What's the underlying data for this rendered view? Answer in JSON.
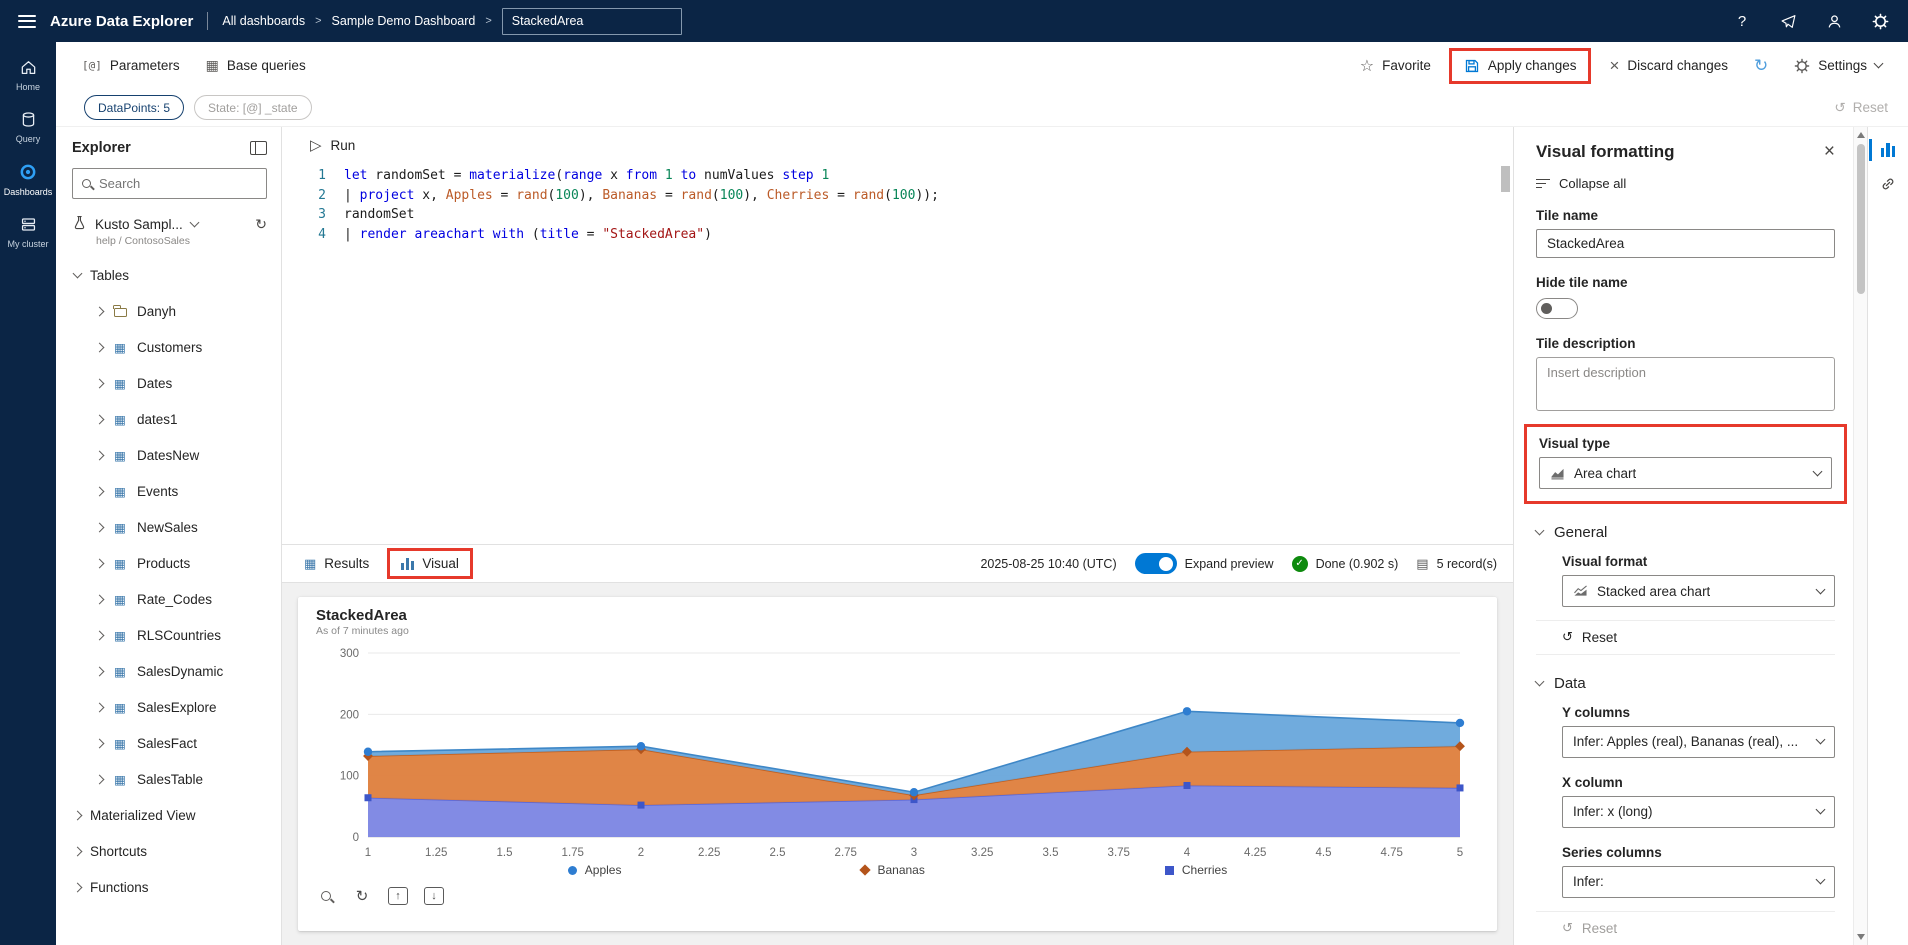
{
  "topbar": {
    "app_title": "Azure Data Explorer",
    "breadcrumb": [
      "All dashboards",
      "Sample Demo Dashboard"
    ],
    "title_input": "StackedArea"
  },
  "toolbar": {
    "parameters": "Parameters",
    "base_queries": "Base queries",
    "favorite": "Favorite",
    "apply_changes": "Apply changes",
    "discard_changes": "Discard changes",
    "settings": "Settings"
  },
  "chips": {
    "datapoints": "DataPoints: 5",
    "state": "State: [@] _state",
    "reset": "Reset"
  },
  "left_rail": {
    "items": [
      {
        "label": "Home",
        "icon": "home",
        "active": false
      },
      {
        "label": "Query",
        "icon": "query",
        "active": false
      },
      {
        "label": "Dashboards",
        "icon": "dashboards",
        "active": true
      },
      {
        "label": "My cluster",
        "icon": "cluster",
        "active": false
      }
    ]
  },
  "explorer": {
    "title": "Explorer",
    "search_placeholder": "Search",
    "database": {
      "name": "Kusto Sampl...",
      "path": "help / ContosoSales"
    },
    "tables": {
      "label": "Tables",
      "items": [
        {
          "label": "Danyh",
          "icon": "folder"
        },
        {
          "label": "Customers",
          "icon": "table"
        },
        {
          "label": "Dates",
          "icon": "table"
        },
        {
          "label": "dates1",
          "icon": "table"
        },
        {
          "label": "DatesNew",
          "icon": "table"
        },
        {
          "label": "Events",
          "icon": "table"
        },
        {
          "label": "NewSales",
          "icon": "table"
        },
        {
          "label": "Products",
          "icon": "table"
        },
        {
          "label": "Rate_Codes",
          "icon": "table"
        },
        {
          "label": "RLSCountries",
          "icon": "table"
        },
        {
          "label": "SalesDynamic",
          "icon": "table"
        },
        {
          "label": "SalesExplore",
          "icon": "table"
        },
        {
          "label": "SalesFact",
          "icon": "table"
        },
        {
          "label": "SalesTable",
          "icon": "table"
        }
      ]
    },
    "other_sections": [
      "Materialized View",
      "Shortcuts",
      "Functions"
    ]
  },
  "editor": {
    "run_label": "Run",
    "lines": [
      [
        {
          "t": "let",
          "c": "kw"
        },
        {
          "t": " randomSet = ",
          "c": "pl"
        },
        {
          "t": "materialize",
          "c": "kw"
        },
        {
          "t": "(",
          "c": "pl"
        },
        {
          "t": "range",
          "c": "kw"
        },
        {
          "t": " x ",
          "c": "pl"
        },
        {
          "t": "from",
          "c": "kw"
        },
        {
          "t": " ",
          "c": "pl"
        },
        {
          "t": "1",
          "c": "num"
        },
        {
          "t": " ",
          "c": "pl"
        },
        {
          "t": "to",
          "c": "kw"
        },
        {
          "t": " numValues ",
          "c": "pl"
        },
        {
          "t": "step",
          "c": "kw"
        },
        {
          "t": " ",
          "c": "pl"
        },
        {
          "t": "1",
          "c": "num"
        }
      ],
      [
        {
          "t": "| ",
          "c": "pl"
        },
        {
          "t": "project",
          "c": "kw"
        },
        {
          "t": " x, ",
          "c": "pl"
        },
        {
          "t": "Apples",
          "c": "col"
        },
        {
          "t": " = ",
          "c": "pl"
        },
        {
          "t": "rand",
          "c": "col"
        },
        {
          "t": "(",
          "c": "pl"
        },
        {
          "t": "100",
          "c": "num"
        },
        {
          "t": "), ",
          "c": "pl"
        },
        {
          "t": "Bananas",
          "c": "col"
        },
        {
          "t": " = ",
          "c": "pl"
        },
        {
          "t": "rand",
          "c": "col"
        },
        {
          "t": "(",
          "c": "pl"
        },
        {
          "t": "100",
          "c": "num"
        },
        {
          "t": "), ",
          "c": "pl"
        },
        {
          "t": "Cherries",
          "c": "col"
        },
        {
          "t": " = ",
          "c": "pl"
        },
        {
          "t": "rand",
          "c": "col"
        },
        {
          "t": "(",
          "c": "pl"
        },
        {
          "t": "100",
          "c": "num"
        },
        {
          "t": "));",
          "c": "pl"
        }
      ],
      [
        {
          "t": "randomSet",
          "c": "pl"
        }
      ],
      [
        {
          "t": "| ",
          "c": "pl"
        },
        {
          "t": "render",
          "c": "kw"
        },
        {
          "t": " areachart ",
          "c": "kw"
        },
        {
          "t": "with",
          "c": "kw"
        },
        {
          "t": " (",
          "c": "pl"
        },
        {
          "t": "title",
          "c": "kw"
        },
        {
          "t": " = ",
          "c": "pl"
        },
        {
          "t": "\"StackedArea\"",
          "c": "str"
        },
        {
          "t": ")",
          "c": "pl"
        }
      ]
    ]
  },
  "results_bar": {
    "results_tab": "Results",
    "visual_tab": "Visual",
    "timestamp": "2025-08-25 10:40 (UTC)",
    "expand_preview": "Expand preview",
    "status": "Done (0.902 s)",
    "records": "5 record(s)"
  },
  "preview": {
    "title": "StackedArea",
    "as_of": "As of 7 minutes ago"
  },
  "chart_data": {
    "type": "area",
    "stacked": true,
    "title": "StackedArea",
    "x": [
      1,
      2,
      3,
      4,
      5
    ],
    "x_ticks": [
      1,
      1.25,
      1.5,
      1.75,
      2,
      2.25,
      2.5,
      2.75,
      3,
      3.25,
      3.5,
      3.75,
      4,
      4.25,
      4.5,
      4.75,
      5
    ],
    "ylim": [
      0,
      300
    ],
    "y_ticks": [
      0,
      100,
      200,
      300
    ],
    "grid": true,
    "legend_position": "bottom",
    "series": [
      {
        "name": "Cherries",
        "values": [
          64,
          52,
          61,
          84,
          80
        ],
        "fill": "#7b85e3",
        "edge": "#5a67d8",
        "marker": "square",
        "marker_color": "#3d56c9"
      },
      {
        "name": "Bananas",
        "values": [
          68,
          91,
          7,
          55,
          68
        ],
        "fill": "#de7e3c",
        "edge": "#c05f1f",
        "marker": "diamond",
        "marker_color": "#b4541b"
      },
      {
        "name": "Apples",
        "values": [
          7,
          5,
          5,
          66,
          38
        ],
        "fill": "#68a7db",
        "edge": "#3e87c7",
        "marker": "circle",
        "marker_color": "#2e7dd1"
      }
    ],
    "legend": [
      {
        "name": "Apples",
        "shape": "circle",
        "color": "#2e7dd1"
      },
      {
        "name": "Bananas",
        "shape": "diamond",
        "color": "#b4541b"
      },
      {
        "name": "Cherries",
        "shape": "square",
        "color": "#3d56c9"
      }
    ]
  },
  "visual_formatting": {
    "title": "Visual formatting",
    "collapse_all": "Collapse all",
    "tile_name_label": "Tile name",
    "tile_name_value": "StackedArea",
    "hide_tile_name_label": "Hide tile name",
    "tile_description_label": "Tile description",
    "tile_description_placeholder": "Insert description",
    "visual_type_label": "Visual type",
    "visual_type_value": "Area chart",
    "general_label": "General",
    "visual_format_label": "Visual format",
    "visual_format_value": "Stacked area chart",
    "reset_label": "Reset",
    "data_label": "Data",
    "y_columns_label": "Y columns",
    "y_columns_value": "Infer: Apples (real), Bananas (real), ...",
    "x_column_label": "X column",
    "x_column_value": "Infer: x (long)",
    "series_columns_label": "Series columns",
    "series_columns_value": "Infer:"
  },
  "colors": {
    "accent": "#0078d4",
    "topbar_bg": "#0b2545",
    "annotation_red": "#e6392b",
    "done_green": "#0e8a0e"
  },
  "icons": {
    "breadcrumb_sep": ">",
    "help": "?",
    "star": "☆",
    "close_x": "×",
    "refresh": "↻",
    "undo": "↺",
    "play": "▷",
    "grid": "▦",
    "rows": "▤",
    "check": "✓",
    "parameters": "[@]",
    "arrow_up": "↑",
    "arrow_down": "↓"
  }
}
